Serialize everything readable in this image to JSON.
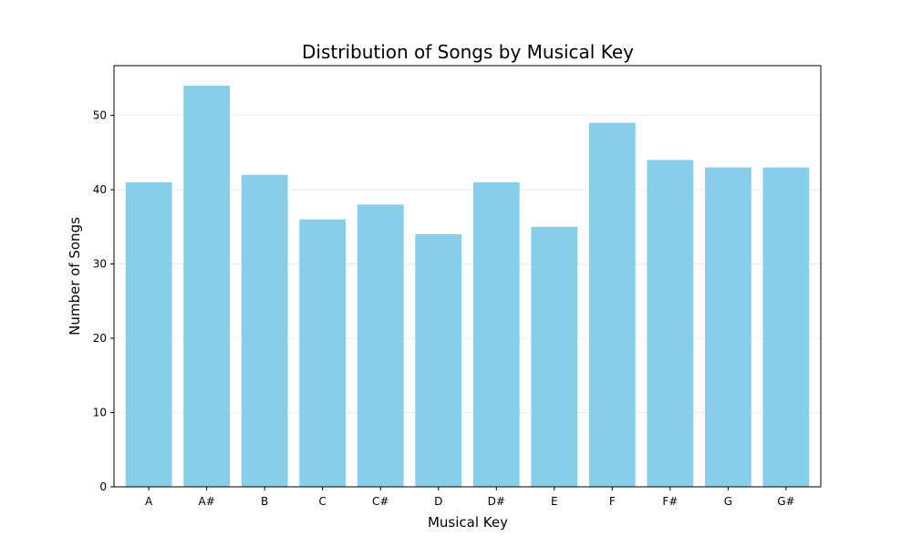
{
  "chart_data": {
    "type": "bar",
    "title": "Distribution of Songs by Musical Key",
    "xlabel": "Musical Key",
    "ylabel": "Number of Songs",
    "categories": [
      "A",
      "A#",
      "B",
      "C",
      "C#",
      "D",
      "D#",
      "E",
      "F",
      "F#",
      "G",
      "G#"
    ],
    "values": [
      41,
      54,
      42,
      36,
      38,
      34,
      41,
      35,
      49,
      44,
      43,
      43
    ],
    "ylim": [
      0,
      56.7
    ],
    "yticks": [
      0,
      10,
      20,
      30,
      40,
      50
    ],
    "grid": "y",
    "bar_color": "#87ceeb"
  }
}
